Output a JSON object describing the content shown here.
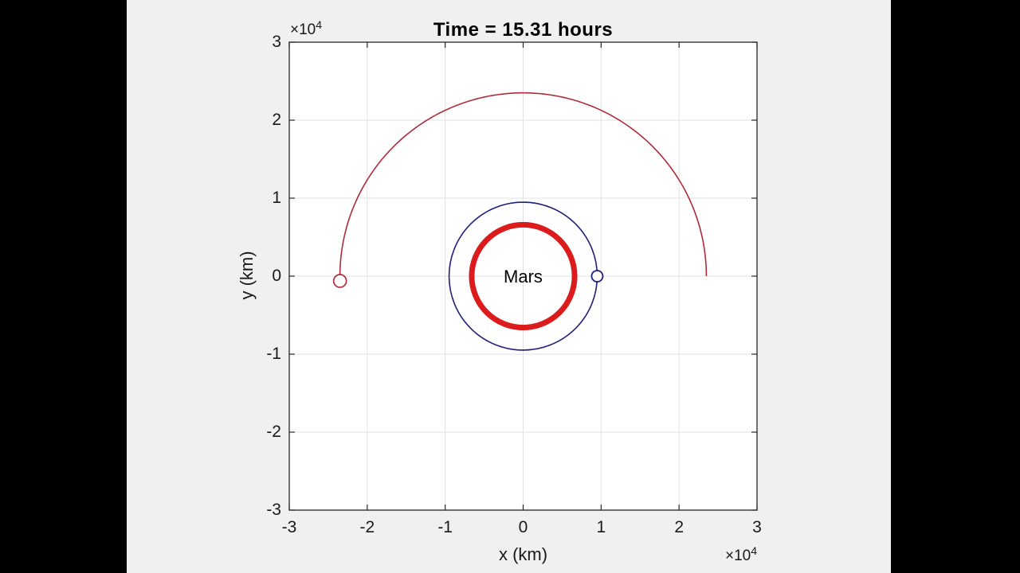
{
  "window": {
    "background": "#000000",
    "figure_background": "#f0f0f0",
    "plot_background": "#ffffff",
    "axis_color": "#262626",
    "grid_color": "#e2e2e2"
  },
  "chart_data": {
    "type": "line",
    "title": "Time = 15.31 hours",
    "xlabel": "x (km)",
    "ylabel": "y (km)",
    "x_exponent": {
      "base": "×10",
      "power": "4"
    },
    "y_exponent": {
      "base": "×10",
      "power": "4"
    },
    "xlim": [
      -30000,
      30000
    ],
    "ylim": [
      -30000,
      30000
    ],
    "grid": true,
    "x_tick_values": [
      -30000,
      -20000,
      -10000,
      0,
      10000,
      20000,
      30000
    ],
    "x_tick_labels": [
      "-3",
      "-2",
      "-1",
      "0",
      "1",
      "2",
      "3"
    ],
    "y_tick_values": [
      30000,
      20000,
      10000,
      0,
      -10000,
      -20000,
      -30000
    ],
    "y_tick_labels": [
      "3",
      "2",
      "1",
      "0",
      "-1",
      "-2",
      "-3"
    ],
    "annotation": {
      "text": "Mars",
      "x": 0,
      "y": 0
    },
    "series": [
      {
        "name": "mars-surface-circle",
        "shape": "circle",
        "cx": 0,
        "cy": 0,
        "r": 6600,
        "color": "#dc1c1c",
        "stroke_px": 7
      },
      {
        "name": "parking-orbit-circle",
        "shape": "circle",
        "cx": 0,
        "cy": 0,
        "r": 9500,
        "color": "#20207d",
        "stroke_px": 1.6
      },
      {
        "name": "transfer-orbit-arc",
        "shape": "arc",
        "cx": 0,
        "cy": 0,
        "r": 23500,
        "start_deg": 0,
        "end_deg": 181.5,
        "color": "#b02c3a",
        "stroke_px": 1.6
      }
    ],
    "markers": [
      {
        "name": "spacecraft-parking-orbit",
        "x": 9500,
        "y": 0,
        "radius_px": 7,
        "color": "#20207d",
        "stroke_px": 1.8
      },
      {
        "name": "spacecraft-transfer-orbit",
        "x": -23492,
        "y": -615,
        "radius_px": 8,
        "color": "#b02c3a",
        "stroke_px": 1.7
      }
    ]
  }
}
